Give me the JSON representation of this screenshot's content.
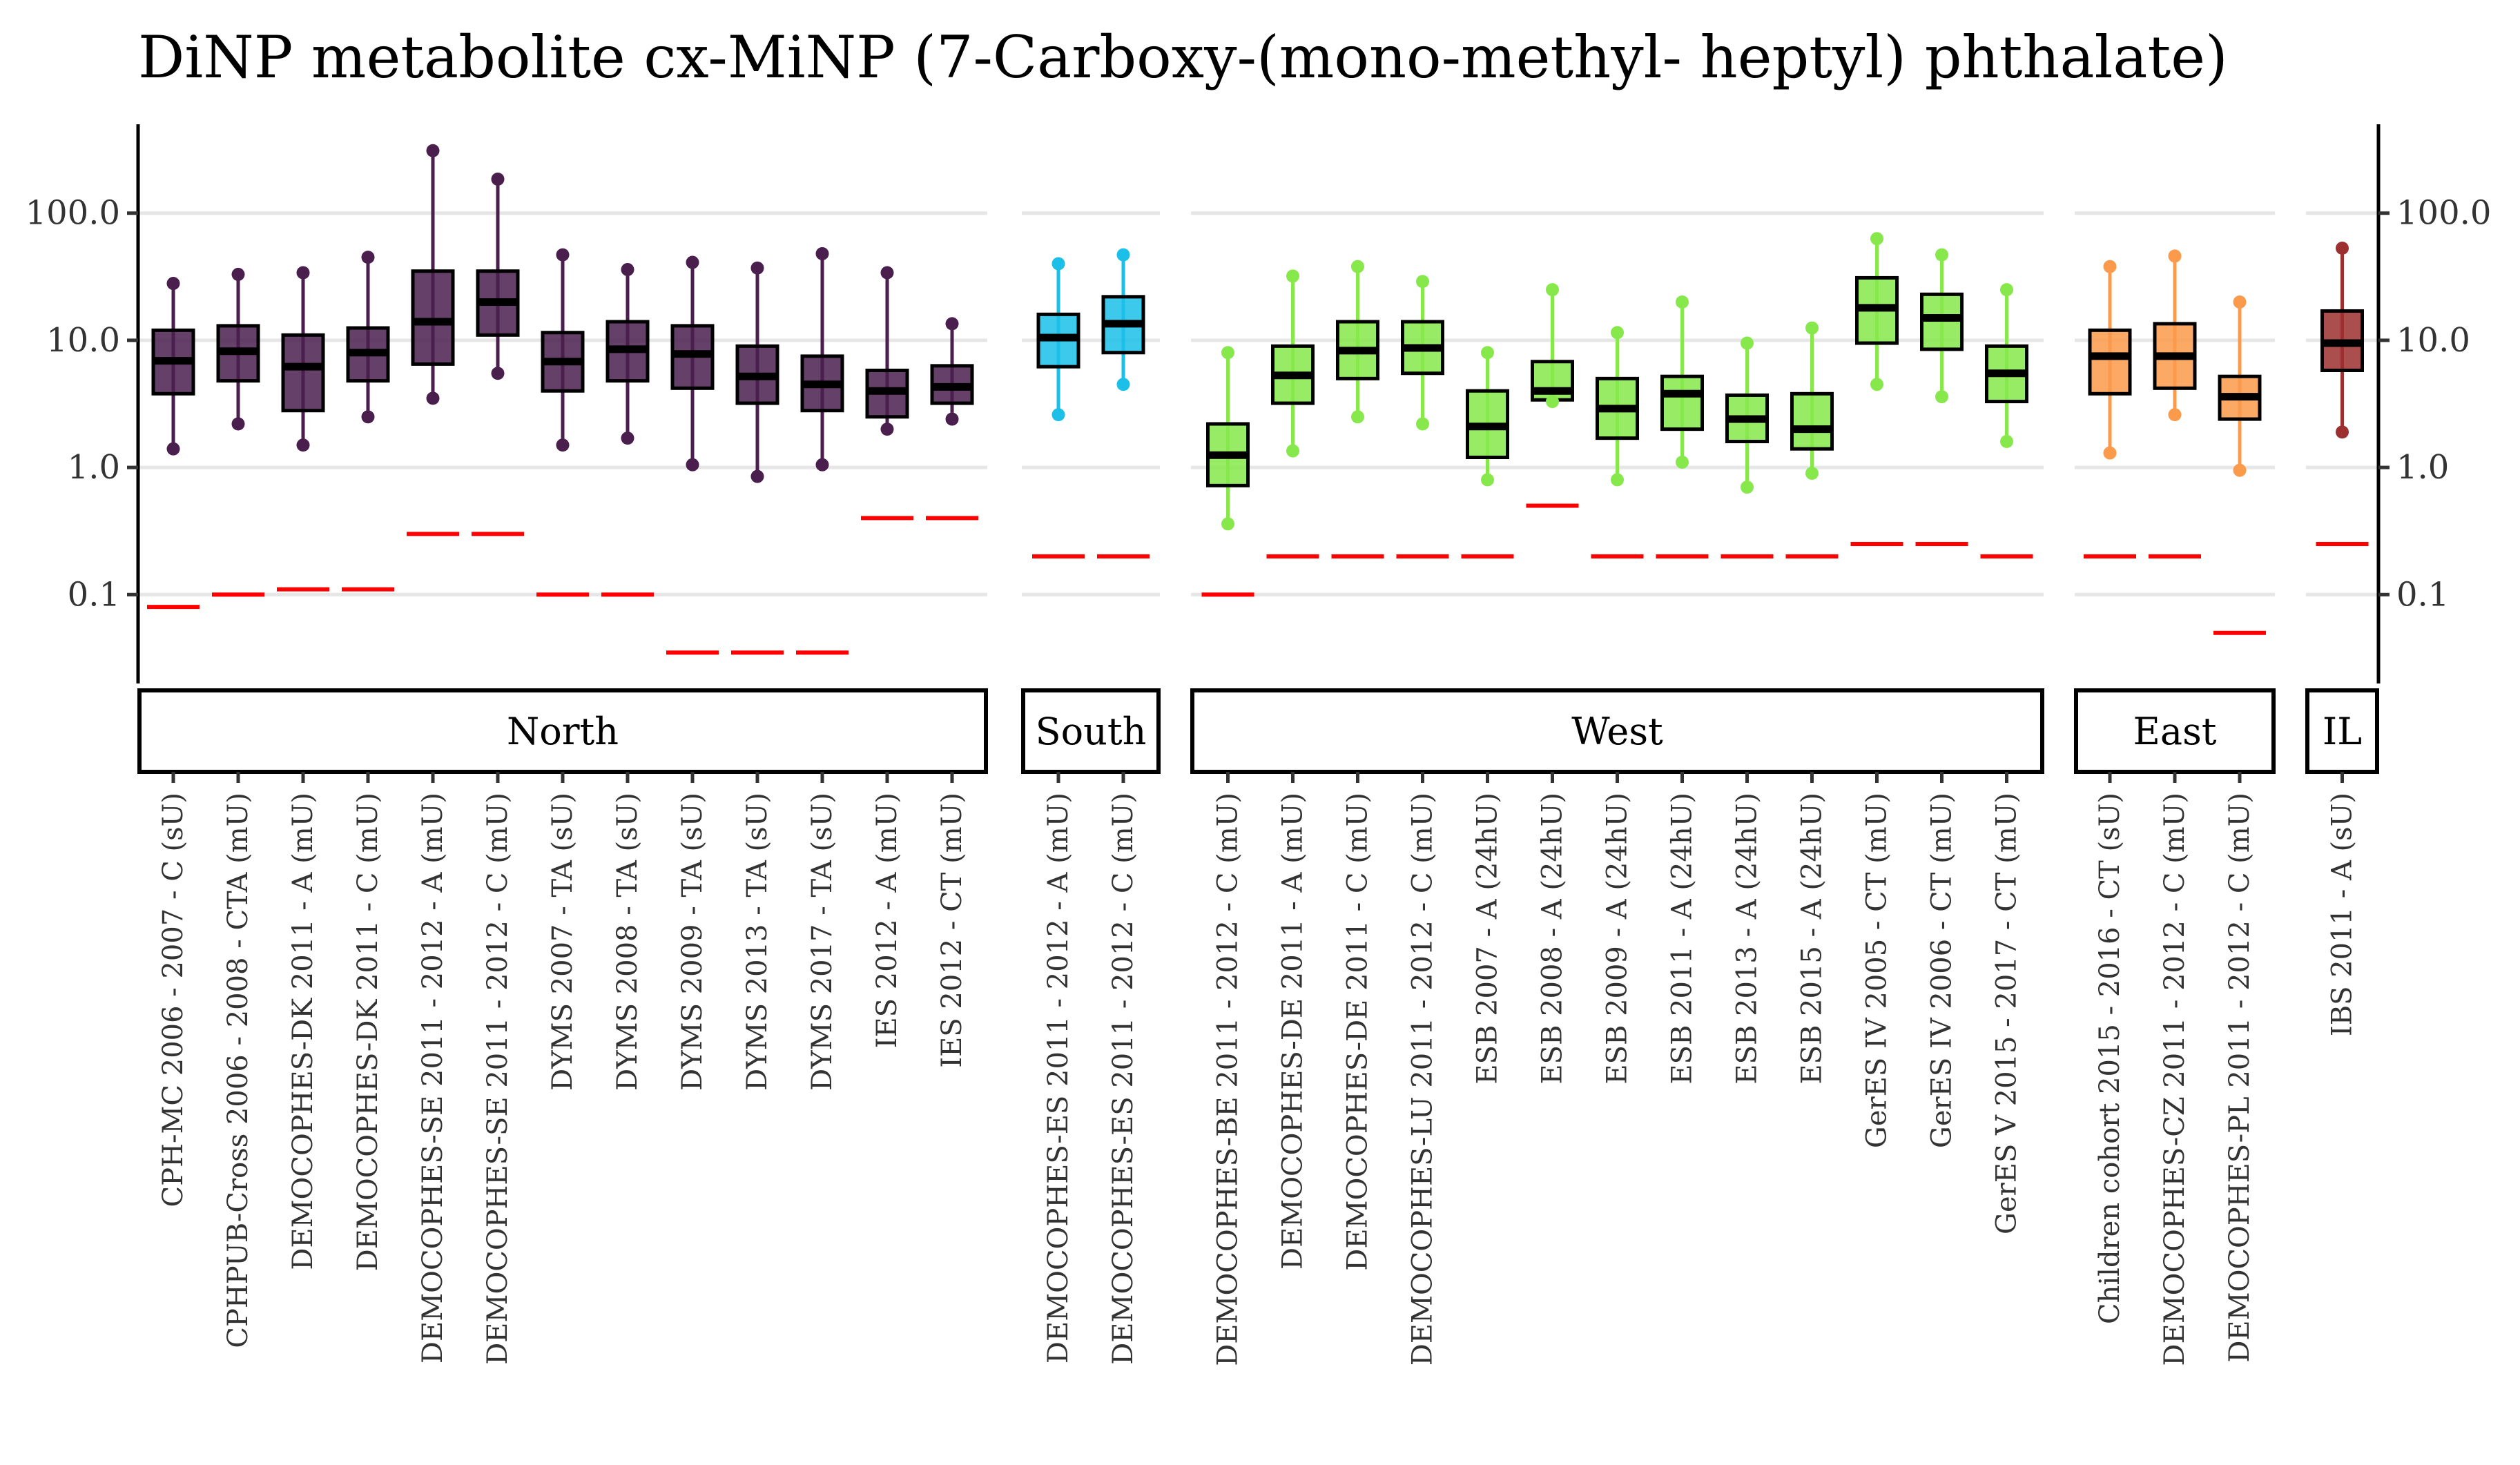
{
  "chart_data": {
    "type": "boxplot",
    "title": "DiNP metabolite cx-MiNP (7-Carboxy-(mono-methyl- heptyl) phthalate)",
    "yscale": "log10",
    "ylim": [
      0.02,
      500
    ],
    "yticks": [
      0.1,
      1.0,
      10.0,
      100.0
    ],
    "ytick_labels": [
      "0.1",
      "1.0",
      "10.0",
      "100.0"
    ],
    "grid": "horizontal",
    "facets": [
      {
        "name": "North",
        "color": "#4a1f4d",
        "studies": [
          {
            "label": "CPH-MC 2006 - 2007 - C (sU)",
            "min": 1.4,
            "q1": 3.8,
            "median": 6.9,
            "q3": 12.0,
            "max": 28,
            "lod": 0.08
          },
          {
            "label": "CPHPUB-Cross 2006 - 2008 - CTA (mU)",
            "min": 2.2,
            "q1": 4.8,
            "median": 8.2,
            "q3": 13.0,
            "max": 33,
            "lod": 0.1
          },
          {
            "label": "DEMOCOPHES-DK 2011 - A (mU)",
            "min": 1.5,
            "q1": 2.8,
            "median": 6.2,
            "q3": 11.0,
            "max": 34,
            "lod": 0.11
          },
          {
            "label": "DEMOCOPHES-DK 2011 - C (mU)",
            "min": 2.5,
            "q1": 4.8,
            "median": 8.0,
            "q3": 12.5,
            "max": 45,
            "lod": 0.11
          },
          {
            "label": "DEMOCOPHES-SE 2011 - 2012 - A (mU)",
            "min": 3.5,
            "q1": 6.5,
            "median": 14.0,
            "q3": 35.0,
            "max": 310,
            "lod": 0.3
          },
          {
            "label": "DEMOCOPHES-SE 2011 - 2012 - C (mU)",
            "min": 5.5,
            "q1": 11.0,
            "median": 20.0,
            "q3": 35.0,
            "max": 185,
            "lod": 0.3
          },
          {
            "label": "DYMS 2007 - TA (sU)",
            "min": 1.5,
            "q1": 4.0,
            "median": 6.8,
            "q3": 11.5,
            "max": 47,
            "lod": 0.1
          },
          {
            "label": "DYMS 2008 - TA (sU)",
            "min": 1.7,
            "q1": 4.8,
            "median": 8.5,
            "q3": 14.0,
            "max": 36,
            "lod": 0.1
          },
          {
            "label": "DYMS 2009 - TA (sU)",
            "min": 1.05,
            "q1": 4.2,
            "median": 7.8,
            "q3": 13.0,
            "max": 41,
            "lod": 0.035
          },
          {
            "label": "DYMS 2013 - TA (sU)",
            "min": 0.85,
            "q1": 3.2,
            "median": 5.2,
            "q3": 9.0,
            "max": 37,
            "lod": 0.035
          },
          {
            "label": "DYMS 2017 - TA (sU)",
            "min": 1.05,
            "q1": 2.8,
            "median": 4.5,
            "q3": 7.5,
            "max": 48,
            "lod": 0.035
          },
          {
            "label": "IES 2012 - A (mU)",
            "min": 2.0,
            "q1": 2.5,
            "median": 4.0,
            "q3": 5.8,
            "max": 34,
            "lod": 0.4
          },
          {
            "label": "IES 2012 - CT (mU)",
            "min": 2.4,
            "q1": 3.2,
            "median": 4.3,
            "q3": 6.3,
            "max": 13.5,
            "lod": 0.4
          }
        ]
      },
      {
        "name": "South",
        "color": "#1bbfe8",
        "studies": [
          {
            "label": "DEMOCOPHES-ES 2011 - 2012 - A (mU)",
            "min": 2.6,
            "q1": 6.2,
            "median": 10.5,
            "q3": 16.0,
            "max": 40,
            "lod": 0.2
          },
          {
            "label": "DEMOCOPHES-ES 2011 - 2012 - C (mU)",
            "min": 4.5,
            "q1": 8.0,
            "median": 13.5,
            "q3": 22.0,
            "max": 47,
            "lod": 0.2
          }
        ]
      },
      {
        "name": "West",
        "color": "#86e84a",
        "studies": [
          {
            "label": "DEMOCOPHES-BE 2011 - 2012 - C (mU)",
            "min": 0.36,
            "q1": 0.72,
            "median": 1.25,
            "q3": 2.2,
            "max": 8.0,
            "lod": 0.1
          },
          {
            "label": "DEMOCOPHES-DE 2011 - A (mU)",
            "min": 1.35,
            "q1": 3.2,
            "median": 5.3,
            "q3": 9.0,
            "max": 32,
            "lod": 0.2
          },
          {
            "label": "DEMOCOPHES-DE 2011 - C (mU)",
            "min": 2.5,
            "q1": 5.0,
            "median": 8.3,
            "q3": 14.0,
            "max": 38,
            "lod": 0.2
          },
          {
            "label": "DEMOCOPHES-LU 2011 - 2012 - C (mU)",
            "min": 2.2,
            "q1": 5.5,
            "median": 8.7,
            "q3": 14.0,
            "max": 29,
            "lod": 0.2
          },
          {
            "label": "ESB 2007 - A (24hU)",
            "min": 0.8,
            "q1": 1.2,
            "median": 2.1,
            "q3": 4.0,
            "max": 8.0,
            "lod": 0.2
          },
          {
            "label": "ESB 2008 - A (24hU)",
            "min": 3.3,
            "q1": 3.4,
            "median": 4.0,
            "q3": 6.8,
            "max": 25,
            "lod": 0.5
          },
          {
            "label": "ESB 2009 - A (24hU)",
            "min": 0.8,
            "q1": 1.7,
            "median": 2.9,
            "q3": 5.0,
            "max": 11.5,
            "lod": 0.2
          },
          {
            "label": "ESB 2011 - A (24hU)",
            "min": 1.1,
            "q1": 2.0,
            "median": 3.8,
            "q3": 5.2,
            "max": 20,
            "lod": 0.2
          },
          {
            "label": "ESB 2013 - A (24hU)",
            "min": 0.7,
            "q1": 1.6,
            "median": 2.4,
            "q3": 3.7,
            "max": 9.5,
            "lod": 0.2
          },
          {
            "label": "ESB 2015 - A (24hU)",
            "min": 0.9,
            "q1": 1.4,
            "median": 2.0,
            "q3": 3.8,
            "max": 12.5,
            "lod": 0.2
          },
          {
            "label": "GerES IV 2005 - CT (mU)",
            "min": 4.5,
            "q1": 9.5,
            "median": 18.0,
            "q3": 31.0,
            "max": 63,
            "lod": 0.25
          },
          {
            "label": "GerES IV 2006 - CT (mU)",
            "min": 3.6,
            "q1": 8.5,
            "median": 15.0,
            "q3": 23.0,
            "max": 47,
            "lod": 0.25
          },
          {
            "label": "GerES V 2015 - 2017 - CT (mU)",
            "min": 1.6,
            "q1": 3.3,
            "median": 5.5,
            "q3": 9.0,
            "max": 25,
            "lod": 0.2
          }
        ]
      },
      {
        "name": "East",
        "color": "#fa9a4a",
        "studies": [
          {
            "label": "Children cohort 2015 - 2016 - CT (sU)",
            "min": 1.3,
            "q1": 3.8,
            "median": 7.5,
            "q3": 12.0,
            "max": 38,
            "lod": 0.2
          },
          {
            "label": "DEMOCOPHES-CZ 2011 - 2012 - C (mU)",
            "min": 2.6,
            "q1": 4.2,
            "median": 7.5,
            "q3": 13.5,
            "max": 46,
            "lod": 0.2
          },
          {
            "label": "DEMOCOPHES-PL 2011 - 2012 - C (mU)",
            "min": 0.95,
            "q1": 2.4,
            "median": 3.6,
            "q3": 5.2,
            "max": 20,
            "lod": 0.05
          }
        ]
      },
      {
        "name": "IL",
        "color": "#9c2f2f",
        "studies": [
          {
            "label": "IBS 2011 - A (sU)",
            "min": 1.9,
            "q1": 5.8,
            "median": 9.5,
            "q3": 17.0,
            "max": 53,
            "lod": 0.25
          }
        ]
      }
    ]
  }
}
